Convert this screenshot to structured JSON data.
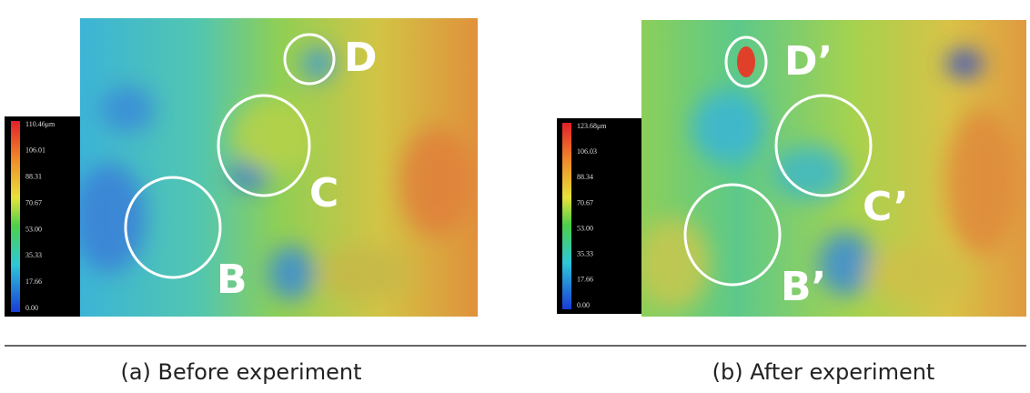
{
  "panels": [
    {
      "colorbar": [
        "110.46μm",
        "106.01",
        "88.31",
        "70.67",
        "53.00",
        "35.33",
        "17.66",
        "0.00"
      ],
      "labels": [
        "D",
        "C",
        "B"
      ],
      "caption": "(a) Before experiment"
    },
    {
      "colorbar": [
        "123.68μm",
        "106.03",
        "88.34",
        "70.67",
        "53.00",
        "35.33",
        "17.66",
        "0.00"
      ],
      "labels": [
        "D’",
        "C’",
        "B’"
      ],
      "caption": "(b) After experiment"
    }
  ]
}
